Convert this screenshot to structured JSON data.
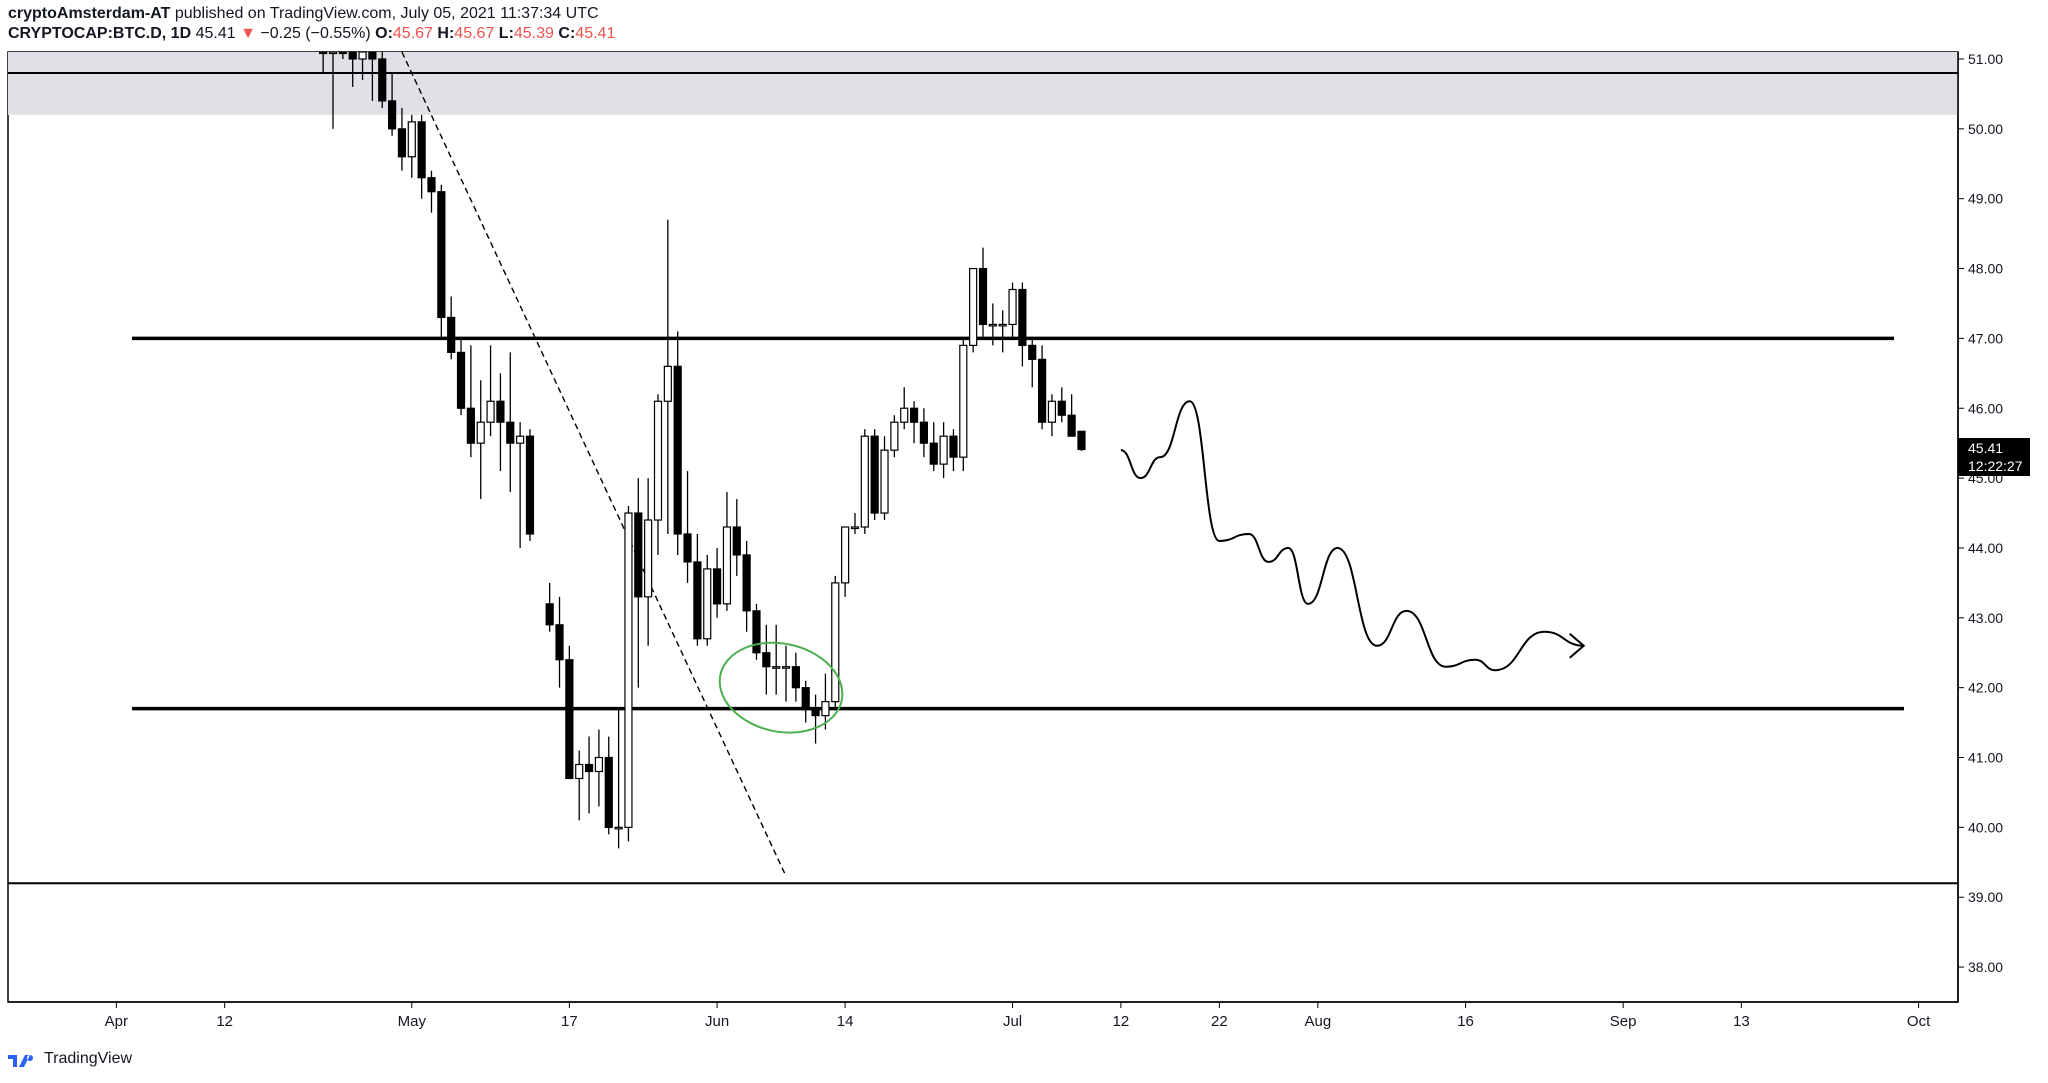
{
  "header": {
    "author": "cryptoAmsterdam-AT",
    "published_text": "published on TradingView.com, July 05, 2021 11:37:34 UTC",
    "symbol": "CRYPTOCAP:BTC.D, 1D",
    "last": "45.41",
    "change_arrow": "▼",
    "change": "−0.25 (−0.55%)",
    "o_label": "O:",
    "o_val": "45.67",
    "h_label": "H:",
    "h_val": "45.67",
    "l_label": "L:",
    "l_val": "45.39",
    "c_label": "C:",
    "c_val": "45.41"
  },
  "footer": {
    "brand": "TradingView",
    "logo_icon": "tradingview-logo-icon"
  },
  "price_tag": {
    "price": "45.41",
    "countdown": "12:22:27"
  },
  "colors": {
    "candle_up_fill": "#ffffff",
    "candle_down_fill": "#000000",
    "zone": "#e0e0e6",
    "ellipse": "#4caf50",
    "change_down": "#ef5350"
  },
  "chart_data": {
    "type": "candlestick",
    "symbol": "CRYPTOCAP:BTC.D",
    "interval": "1D",
    "y_ticks": [
      "51.00",
      "50.00",
      "49.00",
      "48.00",
      "47.00",
      "46.00",
      "45.00",
      "44.00",
      "43.00",
      "42.00",
      "41.00",
      "40.00",
      "39.00",
      "38.00"
    ],
    "ylim": [
      37.5,
      51.1
    ],
    "x_ticks": [
      {
        "label": "Apr",
        "date": "2021-04-01"
      },
      {
        "label": "12",
        "date": "2021-04-12"
      },
      {
        "label": "May",
        "date": "2021-05-01"
      },
      {
        "label": "17",
        "date": "2021-05-17"
      },
      {
        "label": "Jun",
        "date": "2021-06-01"
      },
      {
        "label": "14",
        "date": "2021-06-14"
      },
      {
        "label": "Jul",
        "date": "2021-07-01"
      },
      {
        "label": "12",
        "date": "2021-07-12"
      },
      {
        "label": "22",
        "date": "2021-07-22"
      },
      {
        "label": "Aug",
        "date": "2021-08-01"
      },
      {
        "label": "16",
        "date": "2021-08-16"
      },
      {
        "label": "Sep",
        "date": "2021-09-01"
      },
      {
        "label": "13",
        "date": "2021-09-13"
      },
      {
        "label": "Oct",
        "date": "2021-10-01"
      }
    ],
    "xlim": [
      "2021-03-21",
      "2021-10-05"
    ],
    "candles": [
      {
        "d": "2021-04-22",
        "o": 51.4,
        "h": 51.9,
        "l": 50.8,
        "c": 51.2
      },
      {
        "d": "2021-04-23",
        "o": 51.2,
        "h": 51.6,
        "l": 50.0,
        "c": 51.3
      },
      {
        "d": "2021-04-24",
        "o": 51.3,
        "h": 51.8,
        "l": 51.0,
        "c": 51.1
      },
      {
        "d": "2021-04-25",
        "o": 51.1,
        "h": 51.5,
        "l": 50.6,
        "c": 51.0
      },
      {
        "d": "2021-04-26",
        "o": 51.0,
        "h": 51.4,
        "l": 50.7,
        "c": 51.2
      },
      {
        "d": "2021-04-27",
        "o": 51.2,
        "h": 51.6,
        "l": 50.4,
        "c": 51.0
      },
      {
        "d": "2021-04-28",
        "o": 51.0,
        "h": 51.2,
        "l": 50.3,
        "c": 50.4
      },
      {
        "d": "2021-04-29",
        "o": 50.4,
        "h": 50.8,
        "l": 49.9,
        "c": 50.0
      },
      {
        "d": "2021-04-30",
        "o": 50.0,
        "h": 50.3,
        "l": 49.4,
        "c": 49.6
      },
      {
        "d": "2021-05-01",
        "o": 49.6,
        "h": 50.2,
        "l": 49.3,
        "c": 50.1
      },
      {
        "d": "2021-05-02",
        "o": 50.1,
        "h": 50.2,
        "l": 49.0,
        "c": 49.3
      },
      {
        "d": "2021-05-03",
        "o": 49.3,
        "h": 49.4,
        "l": 48.8,
        "c": 49.1
      },
      {
        "d": "2021-05-04",
        "o": 49.1,
        "h": 49.2,
        "l": 47.0,
        "c": 47.3
      },
      {
        "d": "2021-05-05",
        "o": 47.3,
        "h": 47.6,
        "l": 46.7,
        "c": 46.8
      },
      {
        "d": "2021-05-06",
        "o": 46.8,
        "h": 47.0,
        "l": 45.9,
        "c": 46.0
      },
      {
        "d": "2021-05-07",
        "o": 46.0,
        "h": 46.9,
        "l": 45.3,
        "c": 45.5
      },
      {
        "d": "2021-05-08",
        "o": 45.5,
        "h": 46.4,
        "l": 44.7,
        "c": 45.8
      },
      {
        "d": "2021-05-09",
        "o": 45.8,
        "h": 46.9,
        "l": 45.6,
        "c": 46.1
      },
      {
        "d": "2021-05-10",
        "o": 46.1,
        "h": 46.5,
        "l": 45.1,
        "c": 45.8
      },
      {
        "d": "2021-05-11",
        "o": 45.8,
        "h": 46.8,
        "l": 44.8,
        "c": 45.5
      },
      {
        "d": "2021-05-12",
        "o": 45.5,
        "h": 45.8,
        "l": 44.0,
        "c": 45.6
      },
      {
        "d": "2021-05-13",
        "o": 45.6,
        "h": 45.7,
        "l": 44.1,
        "c": 44.2
      },
      {
        "d": "2021-05-15",
        "o": 43.2,
        "h": 43.5,
        "l": 42.8,
        "c": 42.9
      },
      {
        "d": "2021-05-16",
        "o": 42.9,
        "h": 43.3,
        "l": 42.0,
        "c": 42.4
      },
      {
        "d": "2021-05-17",
        "o": 42.4,
        "h": 42.6,
        "l": 40.7,
        "c": 40.7
      },
      {
        "d": "2021-05-18",
        "o": 40.7,
        "h": 41.1,
        "l": 40.1,
        "c": 40.9
      },
      {
        "d": "2021-05-19",
        "o": 40.9,
        "h": 41.3,
        "l": 40.2,
        "c": 40.8
      },
      {
        "d": "2021-05-20",
        "o": 40.8,
        "h": 41.4,
        "l": 40.3,
        "c": 41.0
      },
      {
        "d": "2021-05-21",
        "o": 41.0,
        "h": 41.3,
        "l": 39.9,
        "c": 40.0
      },
      {
        "d": "2021-05-22",
        "o": 40.0,
        "h": 41.7,
        "l": 39.7,
        "c": 40.0
      },
      {
        "d": "2021-05-23",
        "o": 40.0,
        "h": 44.6,
        "l": 39.8,
        "c": 44.5
      },
      {
        "d": "2021-05-24",
        "o": 44.5,
        "h": 45.0,
        "l": 42.0,
        "c": 43.3
      },
      {
        "d": "2021-05-25",
        "o": 43.3,
        "h": 45.0,
        "l": 42.6,
        "c": 44.4
      },
      {
        "d": "2021-05-26",
        "o": 44.4,
        "h": 46.2,
        "l": 43.9,
        "c": 46.1
      },
      {
        "d": "2021-05-27",
        "o": 46.1,
        "h": 48.7,
        "l": 44.2,
        "c": 46.6
      },
      {
        "d": "2021-05-28",
        "o": 46.6,
        "h": 47.1,
        "l": 43.9,
        "c": 44.2
      },
      {
        "d": "2021-05-29",
        "o": 44.2,
        "h": 45.1,
        "l": 43.5,
        "c": 43.8
      },
      {
        "d": "2021-05-30",
        "o": 43.8,
        "h": 44.2,
        "l": 42.6,
        "c": 42.7
      },
      {
        "d": "2021-05-31",
        "o": 42.7,
        "h": 43.9,
        "l": 42.6,
        "c": 43.7
      },
      {
        "d": "2021-06-01",
        "o": 43.7,
        "h": 44.0,
        "l": 43.0,
        "c": 43.2
      },
      {
        "d": "2021-06-02",
        "o": 43.2,
        "h": 44.8,
        "l": 43.1,
        "c": 44.3
      },
      {
        "d": "2021-06-03",
        "o": 44.3,
        "h": 44.7,
        "l": 43.6,
        "c": 43.9
      },
      {
        "d": "2021-06-04",
        "o": 43.9,
        "h": 44.1,
        "l": 42.8,
        "c": 43.1
      },
      {
        "d": "2021-06-05",
        "o": 43.1,
        "h": 43.2,
        "l": 42.4,
        "c": 42.5
      },
      {
        "d": "2021-06-06",
        "o": 42.5,
        "h": 42.9,
        "l": 41.9,
        "c": 42.3
      },
      {
        "d": "2021-06-07",
        "o": 42.3,
        "h": 42.9,
        "l": 41.9,
        "c": 42.3
      },
      {
        "d": "2021-06-08",
        "o": 42.3,
        "h": 42.6,
        "l": 41.8,
        "c": 42.3
      },
      {
        "d": "2021-06-09",
        "o": 42.3,
        "h": 42.5,
        "l": 41.8,
        "c": 42.0
      },
      {
        "d": "2021-06-10",
        "o": 42.0,
        "h": 42.1,
        "l": 41.5,
        "c": 41.7
      },
      {
        "d": "2021-06-11",
        "o": 41.7,
        "h": 41.9,
        "l": 41.2,
        "c": 41.6
      },
      {
        "d": "2021-06-12",
        "o": 41.6,
        "h": 42.2,
        "l": 41.4,
        "c": 41.8
      },
      {
        "d": "2021-06-13",
        "o": 41.8,
        "h": 43.6,
        "l": 41.7,
        "c": 43.5
      },
      {
        "d": "2021-06-14",
        "o": 43.5,
        "h": 44.3,
        "l": 43.3,
        "c": 44.3
      },
      {
        "d": "2021-06-15",
        "o": 44.3,
        "h": 44.5,
        "l": 44.2,
        "c": 44.3
      },
      {
        "d": "2021-06-16",
        "o": 44.3,
        "h": 45.7,
        "l": 44.2,
        "c": 45.6
      },
      {
        "d": "2021-06-17",
        "o": 45.6,
        "h": 45.7,
        "l": 44.4,
        "c": 44.5
      },
      {
        "d": "2021-06-18",
        "o": 44.5,
        "h": 45.6,
        "l": 44.4,
        "c": 45.4
      },
      {
        "d": "2021-06-19",
        "o": 45.4,
        "h": 45.9,
        "l": 45.3,
        "c": 45.8
      },
      {
        "d": "2021-06-20",
        "o": 45.8,
        "h": 46.3,
        "l": 45.7,
        "c": 46.0
      },
      {
        "d": "2021-06-21",
        "o": 46.0,
        "h": 46.1,
        "l": 45.5,
        "c": 45.8
      },
      {
        "d": "2021-06-22",
        "o": 45.8,
        "h": 46.0,
        "l": 45.3,
        "c": 45.5
      },
      {
        "d": "2021-06-23",
        "o": 45.5,
        "h": 45.8,
        "l": 45.1,
        "c": 45.2
      },
      {
        "d": "2021-06-24",
        "o": 45.2,
        "h": 45.8,
        "l": 45.0,
        "c": 45.6
      },
      {
        "d": "2021-06-25",
        "o": 45.6,
        "h": 45.7,
        "l": 45.1,
        "c": 45.3
      },
      {
        "d": "2021-06-26",
        "o": 45.3,
        "h": 47.0,
        "l": 45.1,
        "c": 46.9
      },
      {
        "d": "2021-06-27",
        "o": 46.9,
        "h": 48.0,
        "l": 46.8,
        "c": 48.0
      },
      {
        "d": "2021-06-28",
        "o": 48.0,
        "h": 48.3,
        "l": 47.0,
        "c": 47.2
      },
      {
        "d": "2021-06-29",
        "o": 47.2,
        "h": 47.5,
        "l": 46.9,
        "c": 47.2
      },
      {
        "d": "2021-06-30",
        "o": 47.2,
        "h": 47.4,
        "l": 46.8,
        "c": 47.2
      },
      {
        "d": "2021-07-01",
        "o": 47.2,
        "h": 47.8,
        "l": 47.0,
        "c": 47.7
      },
      {
        "d": "2021-07-02",
        "o": 47.7,
        "h": 47.8,
        "l": 46.6,
        "c": 46.9
      },
      {
        "d": "2021-07-03",
        "o": 46.9,
        "h": 47.0,
        "l": 46.3,
        "c": 46.7
      },
      {
        "d": "2021-07-04",
        "o": 46.7,
        "h": 46.9,
        "l": 45.7,
        "c": 45.8
      },
      {
        "d": "2021-07-05",
        "o": 45.8,
        "h": 46.2,
        "l": 45.6,
        "c": 46.1
      },
      {
        "d": "2021-07-06",
        "o": 46.1,
        "h": 46.3,
        "l": 45.8,
        "c": 45.9
      },
      {
        "d": "2021-07-07",
        "o": 45.9,
        "h": 46.2,
        "l": 45.6,
        "c": 45.6
      },
      {
        "d": "2021-07-08",
        "o": 45.67,
        "h": 45.67,
        "l": 45.39,
        "c": 45.41
      }
    ],
    "horizontal_lines": [
      47.0,
      41.7,
      39.2,
      50.8
    ],
    "supply_zone": [
      50.2,
      51.1
    ],
    "trend_line": {
      "from": {
        "d": "2021-04-30",
        "v": 51.1
      },
      "to": {
        "d": "2021-06-08",
        "v": 39.3
      }
    },
    "circled_area": {
      "d": "2021-06-08",
      "v": 42.0
    },
    "projection_path": [
      {
        "d": "2021-07-12",
        "v": 45.4
      },
      {
        "d": "2021-07-14",
        "v": 45.0
      },
      {
        "d": "2021-07-16",
        "v": 45.3
      },
      {
        "d": "2021-07-19",
        "v": 46.1
      },
      {
        "d": "2021-07-22",
        "v": 44.1
      },
      {
        "d": "2021-07-25",
        "v": 44.2
      },
      {
        "d": "2021-07-27",
        "v": 43.8
      },
      {
        "d": "2021-07-29",
        "v": 44.0
      },
      {
        "d": "2021-07-31",
        "v": 43.2
      },
      {
        "d": "2021-08-03",
        "v": 44.0
      },
      {
        "d": "2021-08-07",
        "v": 42.6
      },
      {
        "d": "2021-08-10",
        "v": 43.1
      },
      {
        "d": "2021-08-14",
        "v": 42.3
      },
      {
        "d": "2021-08-17",
        "v": 42.4
      },
      {
        "d": "2021-08-19",
        "v": 42.25
      },
      {
        "d": "2021-08-24",
        "v": 42.8
      },
      {
        "d": "2021-08-28",
        "v": 42.6
      }
    ]
  }
}
